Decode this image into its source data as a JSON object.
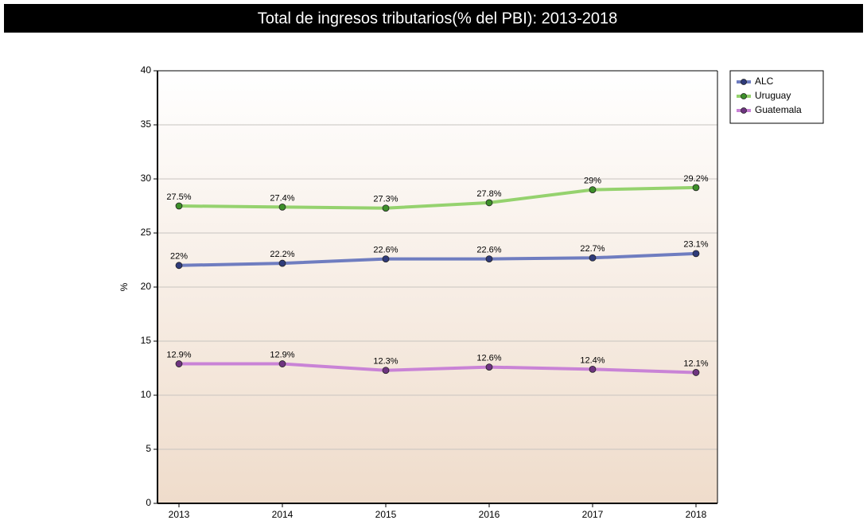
{
  "chart_data": {
    "type": "line",
    "title": "Total de ingresos tributarios(% del PBI): 2013-2018",
    "y_label": "%",
    "categories": [
      "2013",
      "2014",
      "2015",
      "2016",
      "2017",
      "2018"
    ],
    "series": [
      {
        "name": "ALC",
        "color": "#6f7dc0",
        "marker_color": "#2f3b7a",
        "values": [
          22,
          22.2,
          22.6,
          22.6,
          22.7,
          23.1
        ],
        "value_labels": [
          "22%",
          "22.2%",
          "22.6%",
          "22.6%",
          "22.7%",
          "23.1%"
        ]
      },
      {
        "name": "Uruguay",
        "color": "#95d26e",
        "marker_color": "#3d8f2a",
        "values": [
          27.5,
          27.4,
          27.3,
          27.8,
          29,
          29.2
        ],
        "value_labels": [
          "27.5%",
          "27.4%",
          "27.3%",
          "27.8%",
          "29%",
          "29.2%"
        ]
      },
      {
        "name": "Guatemala",
        "color": "#c983d6",
        "marker_color": "#6e3480",
        "values": [
          12.9,
          12.9,
          12.3,
          12.6,
          12.4,
          12.1
        ],
        "value_labels": [
          "12.9%",
          "12.9%",
          "12.3%",
          "12.6%",
          "12.4%",
          "12.1%"
        ]
      }
    ],
    "ylim": [
      0,
      40
    ],
    "yticks": [
      0,
      5,
      10,
      15,
      20,
      25,
      30,
      35,
      40
    ],
    "grid": true,
    "legend": "right"
  }
}
